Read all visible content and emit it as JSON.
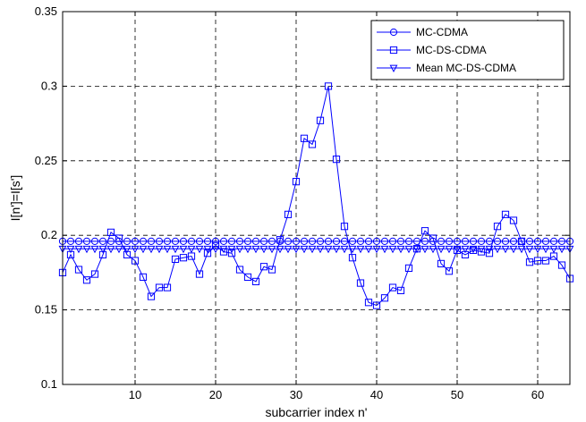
{
  "chart_data": {
    "type": "line",
    "title": "",
    "xlabel": "subcarrier index n'",
    "ylabel": "I[n']=I[s']",
    "xlim": [
      1,
      64
    ],
    "ylim": [
      0.1,
      0.35
    ],
    "xticks": [
      10,
      20,
      30,
      40,
      50,
      60
    ],
    "yticks": [
      0.1,
      0.15,
      0.2,
      0.25,
      0.3,
      0.35
    ],
    "xtick_labels": [
      "10",
      "20",
      "30",
      "40",
      "50",
      "60"
    ],
    "ytick_labels": [
      "0.1",
      "0.15",
      "0.2",
      "0.25",
      "0.3",
      "0.35"
    ],
    "grid": true,
    "grid_style": "dashed",
    "legend_position": "top-right",
    "colors": {
      "series": "#0000ff",
      "grid": "#000000",
      "frame": "#000000"
    },
    "x": [
      1,
      2,
      3,
      4,
      5,
      6,
      7,
      8,
      9,
      10,
      11,
      12,
      13,
      14,
      15,
      16,
      17,
      18,
      19,
      20,
      21,
      22,
      23,
      24,
      25,
      26,
      27,
      28,
      29,
      30,
      31,
      32,
      33,
      34,
      35,
      36,
      37,
      38,
      39,
      40,
      41,
      42,
      43,
      44,
      45,
      46,
      47,
      48,
      49,
      50,
      51,
      52,
      53,
      54,
      55,
      56,
      57,
      58,
      59,
      60,
      61,
      62,
      63,
      64
    ],
    "series": [
      {
        "name": "MC-CDMA",
        "marker": "circle",
        "values": [
          0.196,
          0.196,
          0.196,
          0.196,
          0.196,
          0.196,
          0.196,
          0.196,
          0.196,
          0.196,
          0.196,
          0.196,
          0.196,
          0.196,
          0.196,
          0.196,
          0.196,
          0.196,
          0.196,
          0.196,
          0.196,
          0.196,
          0.196,
          0.196,
          0.196,
          0.196,
          0.196,
          0.196,
          0.196,
          0.196,
          0.196,
          0.196,
          0.196,
          0.196,
          0.196,
          0.196,
          0.196,
          0.196,
          0.196,
          0.196,
          0.196,
          0.196,
          0.196,
          0.196,
          0.196,
          0.196,
          0.196,
          0.196,
          0.196,
          0.196,
          0.196,
          0.196,
          0.196,
          0.196,
          0.196,
          0.196,
          0.196,
          0.196,
          0.196,
          0.196,
          0.196,
          0.196,
          0.196,
          0.196
        ]
      },
      {
        "name": "MC-DS-CDMA",
        "marker": "square",
        "values": [
          0.175,
          0.187,
          0.177,
          0.17,
          0.174,
          0.187,
          0.202,
          0.198,
          0.187,
          0.183,
          0.172,
          0.159,
          0.165,
          0.165,
          0.184,
          0.185,
          0.186,
          0.174,
          0.188,
          0.193,
          0.189,
          0.188,
          0.177,
          0.172,
          0.169,
          0.179,
          0.177,
          0.197,
          0.214,
          0.236,
          0.265,
          0.261,
          0.277,
          0.3,
          0.251,
          0.206,
          0.185,
          0.168,
          0.155,
          0.153,
          0.158,
          0.165,
          0.163,
          0.178,
          0.191,
          0.203,
          0.198,
          0.181,
          0.176,
          0.19,
          0.187,
          0.19,
          0.189,
          0.188,
          0.206,
          0.214,
          0.21,
          0.196,
          0.182,
          0.183,
          0.183,
          0.186,
          0.18,
          0.171
        ]
      },
      {
        "name": "Mean MC-DS-CDMA",
        "marker": "triangle-down",
        "values": [
          0.191,
          0.191,
          0.191,
          0.191,
          0.191,
          0.191,
          0.191,
          0.191,
          0.191,
          0.191,
          0.191,
          0.191,
          0.191,
          0.191,
          0.191,
          0.191,
          0.191,
          0.191,
          0.191,
          0.191,
          0.191,
          0.191,
          0.191,
          0.191,
          0.191,
          0.191,
          0.191,
          0.191,
          0.191,
          0.191,
          0.191,
          0.191,
          0.191,
          0.191,
          0.191,
          0.191,
          0.191,
          0.191,
          0.191,
          0.191,
          0.191,
          0.191,
          0.191,
          0.191,
          0.191,
          0.191,
          0.191,
          0.191,
          0.191,
          0.191,
          0.191,
          0.191,
          0.191,
          0.191,
          0.191,
          0.191,
          0.191,
          0.191,
          0.191,
          0.191,
          0.191,
          0.191,
          0.191,
          0.191
        ]
      }
    ]
  }
}
